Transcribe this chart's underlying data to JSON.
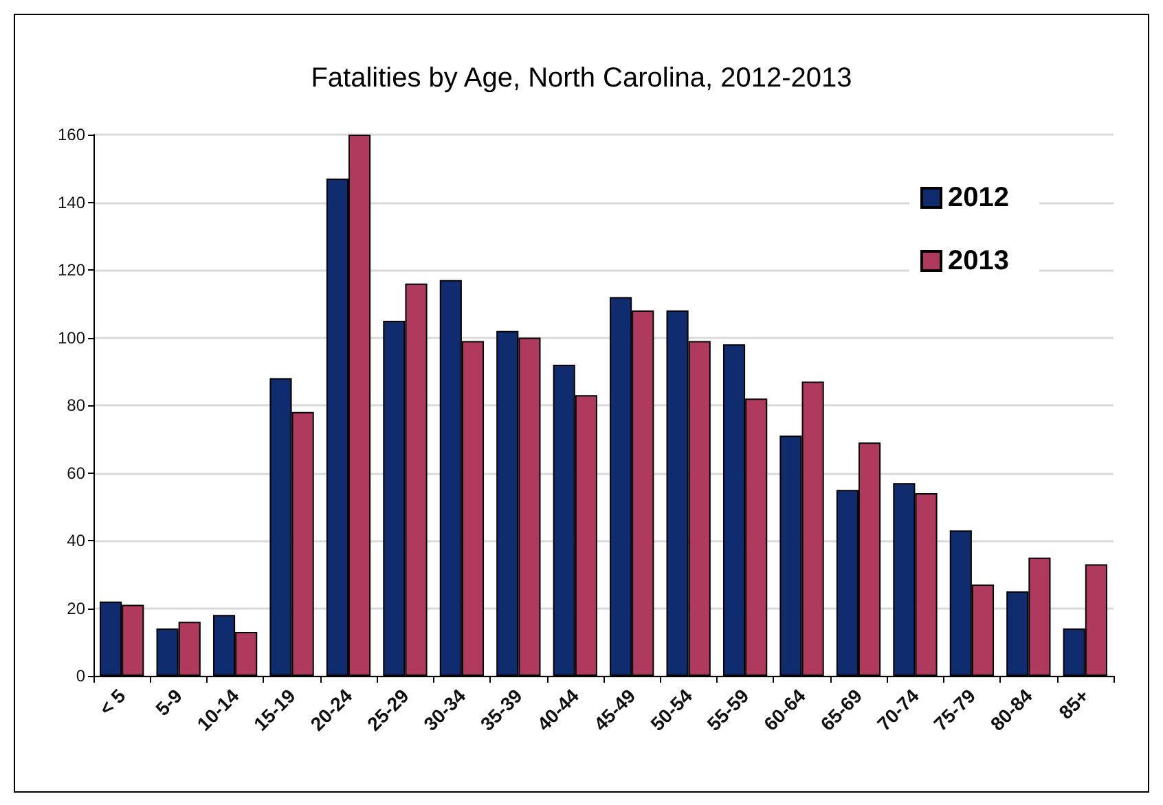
{
  "chart_data": {
    "type": "bar",
    "title": "Fatalities by Age, North Carolina, 2012-2013",
    "categories": [
      "< 5",
      "5-9",
      "10-14",
      "15-19",
      "20-24",
      "25-29",
      "30-34",
      "35-39",
      "40-44",
      "45-49",
      "50-54",
      "55-59",
      "60-64",
      "65-69",
      "70-74",
      "75-79",
      "80-84",
      "85+"
    ],
    "series": [
      {
        "name": "2012",
        "color": "#0f2d6e",
        "values": [
          22,
          14,
          18,
          88,
          147,
          105,
          117,
          102,
          92,
          112,
          108,
          98,
          71,
          55,
          57,
          43,
          25,
          14
        ]
      },
      {
        "name": "2013",
        "color": "#b03a5e",
        "values": [
          21,
          16,
          13,
          78,
          160,
          116,
          99,
          100,
          83,
          108,
          99,
          82,
          87,
          69,
          54,
          27,
          35,
          33
        ]
      }
    ],
    "ylim": [
      0,
      160
    ],
    "yticks": [
      0,
      20,
      40,
      60,
      80,
      100,
      120,
      140,
      160
    ],
    "grid": "y",
    "legend": "top right"
  }
}
